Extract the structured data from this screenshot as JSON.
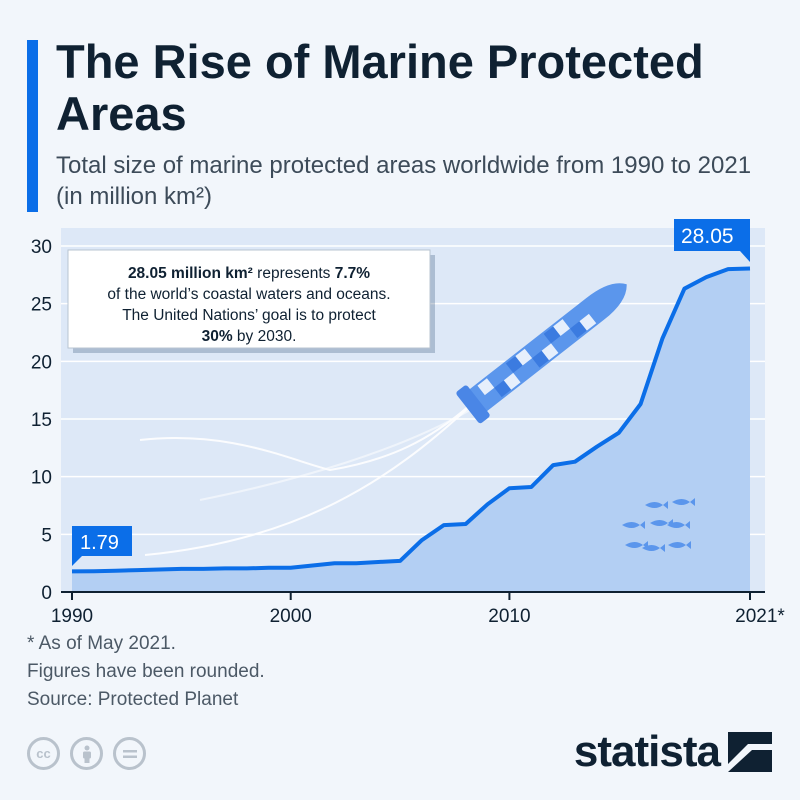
{
  "header": {
    "title": "The Rise of Marine Protected Areas",
    "subtitle": "Total size of marine protected areas worldwide from 1990 to 2021 (in million km²)"
  },
  "annotation": {
    "line1_bold": "28.05 million km²",
    "line1_rest": " represents ",
    "line1_pct": "7.7%",
    "line2": "of the world’s coastal waters and oceans.",
    "line3": "The United Nations’ goal is to protect",
    "line4_bold": "30%",
    "line4_rest": " by 2030."
  },
  "chart_data": {
    "type": "area",
    "x": [
      1990,
      1991,
      1992,
      1993,
      1994,
      1995,
      1996,
      1997,
      1998,
      1999,
      2000,
      2001,
      2002,
      2003,
      2004,
      2005,
      2006,
      2007,
      2008,
      2009,
      2010,
      2011,
      2012,
      2013,
      2014,
      2015,
      2016,
      2017,
      2018,
      2019,
      2020,
      2021
    ],
    "values": [
      1.79,
      1.8,
      1.85,
      1.9,
      1.95,
      2.0,
      2.0,
      2.05,
      2.05,
      2.1,
      2.1,
      2.3,
      2.5,
      2.5,
      2.6,
      2.7,
      4.5,
      5.8,
      5.9,
      7.6,
      9.0,
      9.1,
      11.0,
      11.3,
      12.6,
      13.8,
      16.3,
      22.0,
      26.3,
      27.3,
      28.0,
      28.05
    ],
    "xticks": [
      "1990",
      "2000",
      "2010",
      "2021*"
    ],
    "yticks": [
      0,
      5,
      10,
      15,
      20,
      25,
      30
    ],
    "ylim": [
      0,
      30
    ],
    "xlim": [
      1990,
      2021
    ],
    "grid": true,
    "start_label": "1.79",
    "end_label": "28.05",
    "line_color": "#0b6ee8",
    "fill_color": "#b3cff3"
  },
  "footnotes": {
    "line1": "* As of May 2021.",
    "line2": "Figures have been rounded.",
    "line3": "Source: Protected Planet"
  },
  "brand": {
    "name": "statista"
  },
  "license_icons": [
    "cc-icon",
    "by-icon",
    "nd-icon"
  ],
  "colors": {
    "accent": "#0b6ee8",
    "title": "#0f2132",
    "plot_bg": "#dde8f7"
  }
}
